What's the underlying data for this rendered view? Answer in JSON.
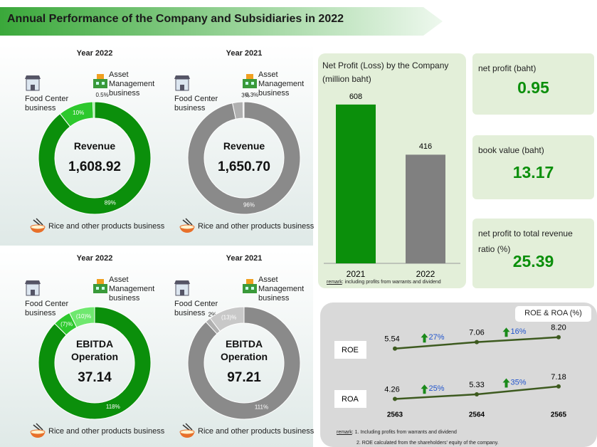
{
  "title": "Annual Performance of the Company and Subsidiaries in 2022",
  "chart_data": [
    {
      "type": "donut",
      "title": "Year 2022",
      "center_label": "Revenue",
      "center_value": "1,608.92",
      "categories": [
        "Rice and other products business",
        "Food Center business",
        "Asset Management business"
      ],
      "values": [
        89,
        10,
        0.5
      ],
      "value_labels": [
        "89%",
        "10%",
        "0.5%"
      ],
      "colors": [
        "#0b8f0b",
        "#2dc82d",
        "#8ae88a"
      ]
    },
    {
      "type": "donut",
      "title": "Year 2021",
      "center_label": "Revenue",
      "center_value": "1,650.70",
      "categories": [
        "Rice and other products business",
        "Food Center business",
        "Asset Management business"
      ],
      "values": [
        96,
        3,
        0.3
      ],
      "value_labels": [
        "96%",
        "3%",
        "0.3%"
      ],
      "colors": [
        "#8a8a8a",
        "#b0b0b0",
        "#d0d0d0"
      ]
    },
    {
      "type": "donut",
      "title": "Year 2022",
      "center_label": "EBITDA Operation",
      "center_value": "37.14",
      "categories": [
        "Rice and other products business",
        "Food Center business",
        "Asset Management business"
      ],
      "values": [
        118,
        -7,
        -10
      ],
      "value_labels": [
        "118%",
        "(7)%",
        "(10)%"
      ],
      "colors": [
        "#0b8f0b",
        "#2dc82d",
        "#6fe86f"
      ]
    },
    {
      "type": "donut",
      "title": "Year 2021",
      "center_label": "EBITDA Operation",
      "center_value": "97.21",
      "categories": [
        "Rice and other products business",
        "Food Center business",
        "Asset Management business"
      ],
      "values": [
        111,
        2,
        -13
      ],
      "value_labels": [
        "111%",
        "2%",
        "(13)%"
      ],
      "colors": [
        "#8a8a8a",
        "#b0b0b0",
        "#c8c8c8"
      ]
    },
    {
      "type": "bar",
      "title": "Net Profit (Loss) by the Company (million baht)",
      "categories": [
        "2021",
        "2022"
      ],
      "values": [
        608,
        416
      ],
      "colors": [
        "#0b8f0b",
        "#808080"
      ],
      "note_label": "remark",
      "note": ": including profits from warrants and dividend"
    },
    {
      "type": "line",
      "title": "ROE & ROA (%)",
      "categories": [
        "2563",
        "2564",
        "2565"
      ],
      "series": [
        {
          "name": "ROE",
          "color": "#3d5a1f",
          "values": [
            5.54,
            7.06,
            8.2
          ],
          "value_labels": [
            "5.54",
            "7.06",
            "8.20"
          ],
          "growth_labels": [
            "27%",
            "16%"
          ]
        },
        {
          "name": "ROA",
          "color": "#3d5a1f",
          "values": [
            4.26,
            5.33,
            7.18
          ],
          "value_labels": [
            "4.26",
            "5.33",
            "7.18"
          ],
          "growth_labels": [
            "25%",
            "35%"
          ]
        }
      ],
      "note_label": "remark",
      "notes": [
        ": 1. Including profits from warrants and dividend",
        "2. ROE calculated from the shareholders' equity of the company."
      ]
    }
  ],
  "cards": [
    {
      "label": "net profit (baht)",
      "value": "0.95"
    },
    {
      "label": "book value (baht)",
      "value": "13.17"
    },
    {
      "label": "net profit to total revenue ratio (%)",
      "value": "25.39"
    }
  ]
}
